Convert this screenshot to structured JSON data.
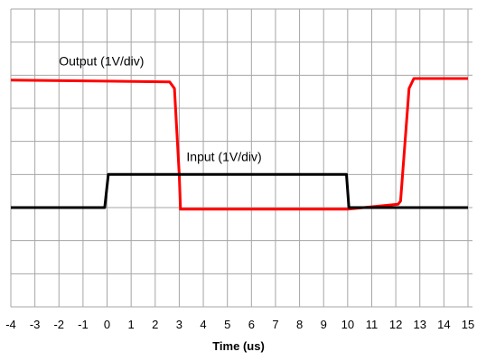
{
  "chart_data": {
    "type": "line",
    "title": "",
    "xlabel": "Time (us)",
    "ylabel": "",
    "xlim": [
      -4,
      15
    ],
    "ylim": [
      -4,
      5
    ],
    "grid": true,
    "x_ticks": [
      -4,
      -3,
      -2,
      -1,
      0,
      1,
      2,
      3,
      4,
      5,
      6,
      7,
      8,
      9,
      10,
      11,
      12,
      13,
      14,
      15
    ],
    "series": [
      {
        "name": "Output (1V/div)",
        "color": "#ff0000",
        "x": [
          -4,
          2.6,
          2.8,
          3.0,
          3.05,
          10,
          12.1,
          12.2,
          12.55,
          12.75,
          15
        ],
        "y": [
          2.85,
          2.8,
          2.6,
          0,
          -1.05,
          -1.05,
          -0.9,
          -0.8,
          2.6,
          2.9,
          2.9
        ]
      },
      {
        "name": "Input (1V/div)",
        "color": "#000000",
        "x": [
          -4,
          -0.1,
          0.05,
          9.95,
          10.05,
          15
        ],
        "y": [
          -1.0,
          -1.0,
          0.0,
          0.0,
          -1.0,
          -1.0
        ]
      }
    ],
    "annotations": [
      {
        "text": "Output (1V/div)",
        "x": -2,
        "y": 3.3
      },
      {
        "text": "Input (1V/div)",
        "x": 3.3,
        "y": 0.4
      }
    ]
  }
}
